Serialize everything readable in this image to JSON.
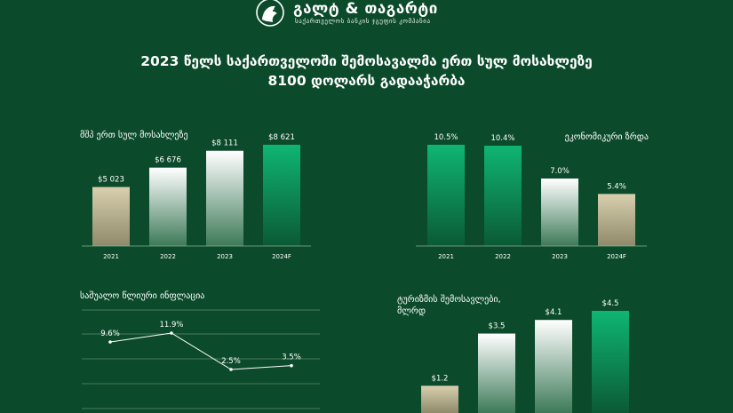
{
  "brand": {
    "name": "გალტ & თაგარტი",
    "tagline": "საქართველოს ბანკის ჯგუფის კომპანია"
  },
  "headline": {
    "line1": "2023 წელს საქართველოში შემოსავალმა ერთ სულ მოსახლეზე",
    "line2": "8100 დოლარს გადააჭარბა"
  },
  "colors": {
    "background": "#0b4a2a",
    "accent_green": "#0aa86a",
    "beige": "#c9bf9c",
    "white": "#ffffff"
  },
  "chart_data": [
    {
      "type": "bar",
      "title": "მშპ ერთ სულ მოსახლეზე",
      "categories": [
        "2021",
        "2022",
        "2023",
        "2024F"
      ],
      "values": [
        5023,
        6676,
        8111,
        8621
      ],
      "labels": [
        "$5 023",
        "$6 676",
        "$8 111",
        "$8 621"
      ],
      "ylim": [
        0,
        8621
      ]
    },
    {
      "type": "bar",
      "title": "ეკონომიკური ზრდა",
      "categories": [
        "2021",
        "2022",
        "2023",
        "2024F"
      ],
      "values": [
        10.5,
        10.4,
        7.0,
        5.4
      ],
      "labels": [
        "10.5%",
        "10.4%",
        "7.0%",
        "5.4%"
      ],
      "ylim": [
        0,
        10.5
      ]
    },
    {
      "type": "line",
      "title": "საშუალო წლიური ინფლაცია",
      "values": [
        9.6,
        11.9,
        2.5,
        3.5
      ],
      "labels": [
        "9.6%",
        "11.9%",
        "2.5%",
        "3.5%"
      ],
      "grid": true
    },
    {
      "type": "bar",
      "title": "ტურიზმის შემოსავლები,",
      "title_line2": "მლრდ",
      "values": [
        1.2,
        3.5,
        4.1,
        4.5
      ],
      "labels": [
        "$1.2",
        "$3.5",
        "$4.1",
        "$4.5"
      ],
      "ylim": [
        0,
        4.5
      ]
    }
  ]
}
